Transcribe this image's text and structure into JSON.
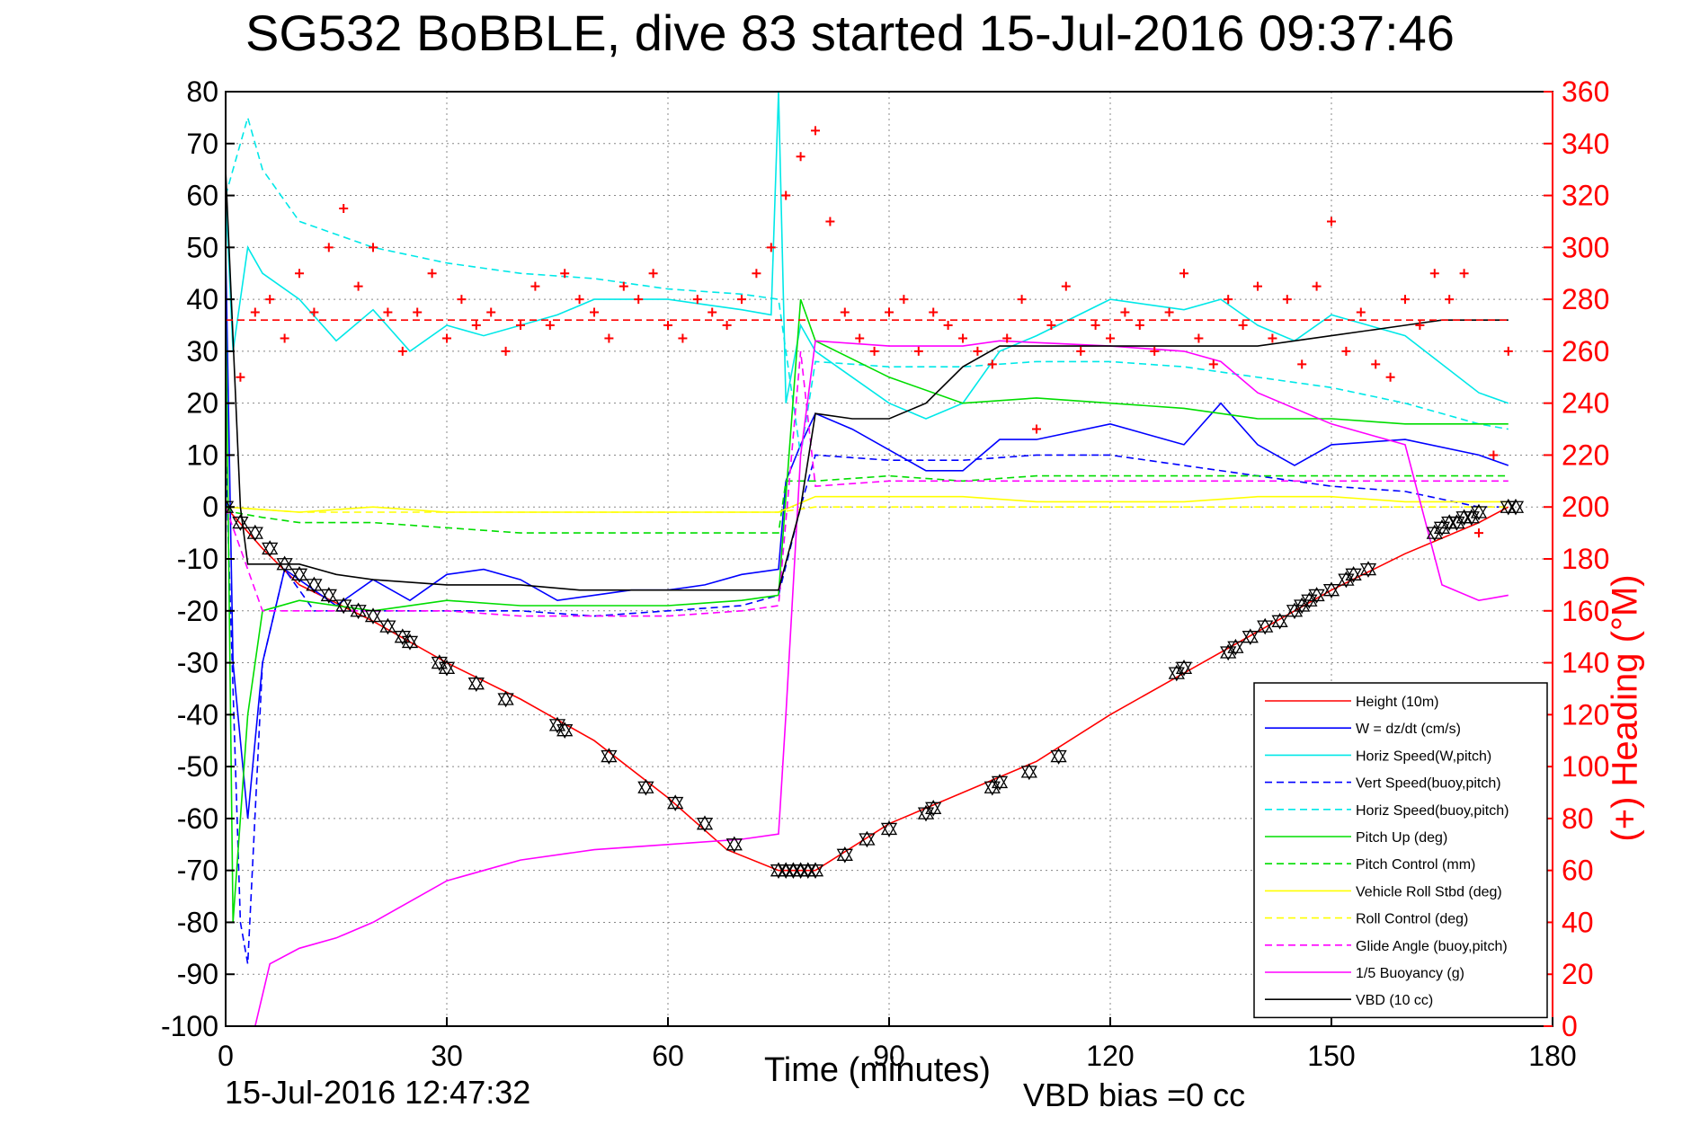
{
  "header": {
    "title": "SG532 BoBBLE, dive 83 started 15-Jul-2016 09:37:46"
  },
  "footer": {
    "end_time": "15-Jul-2016 12:47:32",
    "vbd_bias": "VBD bias =0 cc"
  },
  "chart_data": {
    "type": "line",
    "xlabel": "Time (minutes)",
    "ylabel": "",
    "ylabel_right": "(+) Heading (°M)",
    "xlim": [
      0,
      180
    ],
    "ylim": [
      -100,
      80
    ],
    "ylim_right": [
      0,
      360
    ],
    "xticks": [
      "0",
      "30",
      "60",
      "90",
      "120",
      "150",
      "180"
    ],
    "yticks": [
      "80",
      "70",
      "60",
      "50",
      "40",
      "30",
      "20",
      "10",
      "0",
      "-10",
      "-20",
      "-30",
      "-40",
      "-50",
      "-60",
      "-70",
      "-80",
      "-90",
      "-100"
    ],
    "yticks_right": [
      "360",
      "340",
      "320",
      "300",
      "280",
      "260",
      "240",
      "220",
      "200",
      "180",
      "160",
      "140",
      "120",
      "100",
      "80",
      "60",
      "40",
      "20",
      "0"
    ],
    "grid": true,
    "legend_position": "lower-right",
    "colors": {
      "red": "#ff0000",
      "blue": "#0000ff",
      "cyan": "#00e8e8",
      "green": "#00dd00",
      "yellow": "#ffff00",
      "magenta": "#ff00ff",
      "black": "#000000"
    },
    "series": [
      {
        "name": "Height (10m)",
        "color": "#ff0000",
        "style": "solid",
        "x": [
          0,
          5,
          10,
          20,
          30,
          40,
          50,
          60,
          68,
          75,
          80,
          90,
          100,
          110,
          120,
          130,
          140,
          150,
          160,
          170,
          174
        ],
        "y": [
          0,
          -8,
          -15,
          -22,
          -30,
          -37,
          -45,
          -56,
          -66,
          -70,
          -70,
          -61,
          -55,
          -49,
          -40,
          -32,
          -24,
          -16,
          -9,
          -3,
          0
        ]
      },
      {
        "name": "W = dz/dt (cm/s)",
        "color": "#0000ff",
        "style": "solid",
        "x": [
          0,
          1,
          3,
          5,
          8,
          12,
          15,
          20,
          25,
          30,
          35,
          40,
          45,
          50,
          55,
          60,
          65,
          70,
          75,
          76,
          78,
          80,
          85,
          90,
          95,
          100,
          105,
          110,
          120,
          130,
          135,
          140,
          145,
          150,
          160,
          170,
          174
        ],
        "y": [
          50,
          -30,
          -60,
          -30,
          -12,
          -16,
          -19,
          -14,
          -18,
          -13,
          -12,
          -14,
          -18,
          -17,
          -16,
          -16,
          -15,
          -13,
          -12,
          5,
          12,
          18,
          15,
          11,
          7,
          7,
          13,
          13,
          16,
          12,
          20,
          12,
          8,
          12,
          13,
          10,
          8
        ]
      },
      {
        "name": "Horiz Speed(W,pitch)",
        "color": "#00e8e8",
        "style": "solid",
        "x": [
          0,
          1,
          3,
          5,
          10,
          15,
          20,
          25,
          30,
          35,
          40,
          45,
          50,
          55,
          60,
          65,
          70,
          74,
          75,
          76,
          78,
          80,
          85,
          90,
          95,
          100,
          105,
          110,
          120,
          130,
          135,
          140,
          145,
          150,
          160,
          170,
          174
        ],
        "y": [
          60,
          30,
          50,
          45,
          40,
          32,
          38,
          30,
          35,
          33,
          35,
          37,
          40,
          40,
          40,
          39,
          38,
          37,
          80,
          20,
          35,
          30,
          25,
          20,
          17,
          20,
          30,
          33,
          40,
          38,
          40,
          35,
          32,
          37,
          33,
          22,
          20
        ]
      },
      {
        "name": "Vert Speed(buoy,pitch)",
        "color": "#0000ff",
        "style": "dashed",
        "x": [
          0,
          2,
          3,
          5,
          8,
          12,
          20,
          30,
          40,
          50,
          60,
          70,
          75,
          78,
          80,
          90,
          100,
          110,
          120,
          130,
          140,
          150,
          160,
          170,
          174
        ],
        "y": [
          10,
          -80,
          -88,
          -30,
          -12,
          -20,
          -20,
          -20,
          -20,
          -21,
          -20,
          -19,
          -17,
          0,
          10,
          9,
          9,
          10,
          10,
          8,
          6,
          4,
          3,
          0,
          0
        ]
      },
      {
        "name": "Horiz Speed(buoy,pitch)",
        "color": "#00e8e8",
        "style": "dashed",
        "x": [
          0,
          3,
          5,
          10,
          20,
          30,
          40,
          50,
          60,
          70,
          75,
          78,
          80,
          90,
          100,
          110,
          120,
          130,
          140,
          150,
          160,
          170,
          174
        ],
        "y": [
          60,
          75,
          65,
          55,
          50,
          47,
          45,
          44,
          42,
          41,
          40,
          10,
          28,
          27,
          27,
          28,
          28,
          27,
          25,
          23,
          20,
          16,
          15
        ]
      },
      {
        "name": "Pitch Up (deg)",
        "color": "#00dd00",
        "style": "solid",
        "x": [
          0,
          1,
          3,
          5,
          10,
          20,
          30,
          40,
          50,
          60,
          70,
          75,
          78,
          80,
          90,
          100,
          110,
          120,
          130,
          140,
          150,
          160,
          170,
          174
        ],
        "y": [
          40,
          -80,
          -40,
          -20,
          -18,
          -20,
          -18,
          -19,
          -19,
          -19,
          -18,
          -17,
          40,
          32,
          25,
          20,
          21,
          20,
          19,
          17,
          17,
          16,
          16,
          16
        ]
      },
      {
        "name": "Pitch Control (mm)",
        "color": "#00dd00",
        "style": "dashed",
        "x": [
          0,
          1,
          5,
          10,
          20,
          30,
          40,
          50,
          60,
          70,
          75,
          76,
          80,
          90,
          100,
          110,
          120,
          130,
          140,
          150,
          160,
          170,
          174
        ],
        "y": [
          0,
          -1,
          -2,
          -3,
          -3,
          -4,
          -5,
          -5,
          -5,
          -5,
          -5,
          5,
          5,
          6,
          5,
          6,
          6,
          6,
          6,
          6,
          6,
          6,
          6
        ]
      },
      {
        "name": "Vehicle Roll Stbd (deg)",
        "color": "#ffff00",
        "style": "solid",
        "x": [
          0,
          10,
          20,
          30,
          40,
          50,
          60,
          70,
          75,
          80,
          90,
          100,
          110,
          120,
          130,
          140,
          150,
          160,
          170,
          174
        ],
        "y": [
          0,
          -1,
          0,
          -1,
          -1,
          -1,
          -1,
          -1,
          -1,
          2,
          2,
          2,
          1,
          1,
          1,
          2,
          2,
          1,
          1,
          1
        ]
      },
      {
        "name": "Roll Control (deg)",
        "color": "#ffff00",
        "style": "dashed",
        "x": [
          0,
          10,
          20,
          30,
          40,
          50,
          60,
          70,
          75,
          80,
          90,
          100,
          110,
          120,
          130,
          140,
          150,
          160,
          170,
          174
        ],
        "y": [
          0,
          -1,
          -1,
          -1,
          -1,
          -1,
          -1,
          -1,
          -1,
          0,
          0,
          0,
          0,
          0,
          0,
          0,
          0,
          0,
          0,
          0
        ]
      },
      {
        "name": "Glide Angle (buoy,pitch)",
        "color": "#ff00ff",
        "style": "dashed",
        "x": [
          0,
          5,
          10,
          20,
          30,
          40,
          50,
          60,
          70,
          75,
          78,
          80,
          90,
          100,
          110,
          120,
          130,
          140,
          150,
          160,
          170,
          174
        ],
        "y": [
          0,
          -20,
          -20,
          -20,
          -20,
          -21,
          -21,
          -21,
          -20,
          -19,
          30,
          4,
          5,
          5,
          5,
          5,
          5,
          5,
          5,
          5,
          5,
          5
        ]
      },
      {
        "name": "1/5 Buoyancy (g)",
        "color": "#ff00ff",
        "style": "solid",
        "x": [
          4,
          6,
          10,
          15,
          20,
          25,
          30,
          35,
          40,
          50,
          60,
          70,
          75,
          76,
          78,
          80,
          90,
          100,
          105,
          120,
          130,
          135,
          140,
          150,
          160,
          165,
          170,
          174
        ],
        "y": [
          -100,
          -88,
          -85,
          -83,
          -80,
          -76,
          -72,
          -70,
          -68,
          -66,
          -65,
          -64,
          -63,
          -40,
          10,
          32,
          31,
          31,
          32,
          31,
          30,
          28,
          22,
          16,
          12,
          -15,
          -18,
          -17
        ]
      },
      {
        "name": "VBD (10 cc)",
        "color": "#000000",
        "style": "solid",
        "x": [
          0,
          2,
          3,
          10,
          15,
          20,
          30,
          40,
          48,
          50,
          60,
          70,
          75,
          78,
          80,
          85,
          90,
          95,
          100,
          105,
          110,
          120,
          130,
          140,
          150,
          160,
          165,
          170,
          174
        ],
        "y": [
          65,
          0,
          -11,
          -11,
          -13,
          -14,
          -15,
          -15,
          -16,
          -16,
          -16,
          -16,
          -16,
          0,
          18,
          17,
          17,
          20,
          27,
          31,
          31,
          31,
          31,
          31,
          33,
          35,
          36,
          36,
          36
        ]
      },
      {
        "name": "Heading",
        "axis": "right",
        "color": "#ff0000",
        "style": "markers",
        "marker": "+",
        "x": [
          0,
          2,
          4,
          6,
          8,
          10,
          12,
          14,
          16,
          18,
          20,
          22,
          24,
          26,
          28,
          30,
          32,
          34,
          36,
          38,
          40,
          42,
          44,
          46,
          48,
          50,
          52,
          54,
          56,
          58,
          60,
          62,
          64,
          66,
          68,
          70,
          72,
          74,
          76,
          78,
          80,
          82,
          84,
          86,
          88,
          90,
          92,
          94,
          96,
          98,
          100,
          102,
          104,
          106,
          108,
          110,
          112,
          114,
          116,
          118,
          120,
          122,
          124,
          126,
          128,
          130,
          132,
          134,
          136,
          138,
          140,
          142,
          144,
          146,
          148,
          150,
          152,
          154,
          156,
          158,
          160,
          162,
          164,
          166,
          168,
          170,
          172,
          174
        ],
        "y": [
          220,
          250,
          275,
          280,
          265,
          290,
          275,
          300,
          315,
          285,
          300,
          275,
          260,
          275,
          290,
          265,
          280,
          270,
          275,
          260,
          270,
          285,
          270,
          290,
          280,
          275,
          265,
          285,
          280,
          290,
          270,
          265,
          280,
          275,
          270,
          280,
          290,
          300,
          320,
          335,
          345,
          310,
          275,
          265,
          260,
          275,
          280,
          260,
          275,
          270,
          265,
          260,
          255,
          265,
          280,
          230,
          270,
          285,
          260,
          270,
          265,
          275,
          270,
          260,
          275,
          290,
          265,
          255,
          280,
          270,
          285,
          265,
          280,
          255,
          285,
          310,
          260,
          275,
          255,
          250,
          280,
          270,
          290,
          280,
          290,
          190,
          220,
          260
        ]
      },
      {
        "name": "Heading reference",
        "axis": "right",
        "color": "#ff0000",
        "style": "dashed",
        "x": [
          0,
          174
        ],
        "y": [
          272,
          272
        ]
      },
      {
        "name": "Depth markers",
        "color": "#000000",
        "style": "markers",
        "marker": "triangle",
        "x": [
          0,
          2,
          4,
          6,
          8,
          10,
          12,
          14,
          16,
          18,
          20,
          22,
          24,
          25,
          29,
          30,
          34,
          38,
          45,
          46,
          52,
          57,
          61,
          65,
          69,
          75,
          76,
          77,
          78,
          79,
          80,
          84,
          87,
          90,
          95,
          96,
          104,
          105,
          109,
          113,
          129,
          130,
          136,
          137,
          139,
          141,
          143,
          145,
          146,
          147,
          148,
          150,
          152,
          153,
          155,
          164,
          165,
          166,
          167,
          168,
          169,
          170,
          174,
          175
        ],
        "y": [
          0,
          -3,
          -5,
          -8,
          -11,
          -13,
          -15,
          -17,
          -19,
          -20,
          -21,
          -23,
          -25,
          -26,
          -30,
          -31,
          -34,
          -37,
          -42,
          -43,
          -48,
          -54,
          -57,
          -61,
          -65,
          -70,
          -70,
          -70,
          -70,
          -70,
          -70,
          -67,
          -64,
          -62,
          -59,
          -58,
          -54,
          -53,
          -51,
          -48,
          -32,
          -31,
          -28,
          -27,
          -25,
          -23,
          -22,
          -20,
          -19,
          -18,
          -17,
          -16,
          -14,
          -13,
          -12,
          -5,
          -4,
          -3,
          -3,
          -2,
          -2,
          -1,
          0,
          0
        ]
      }
    ]
  }
}
